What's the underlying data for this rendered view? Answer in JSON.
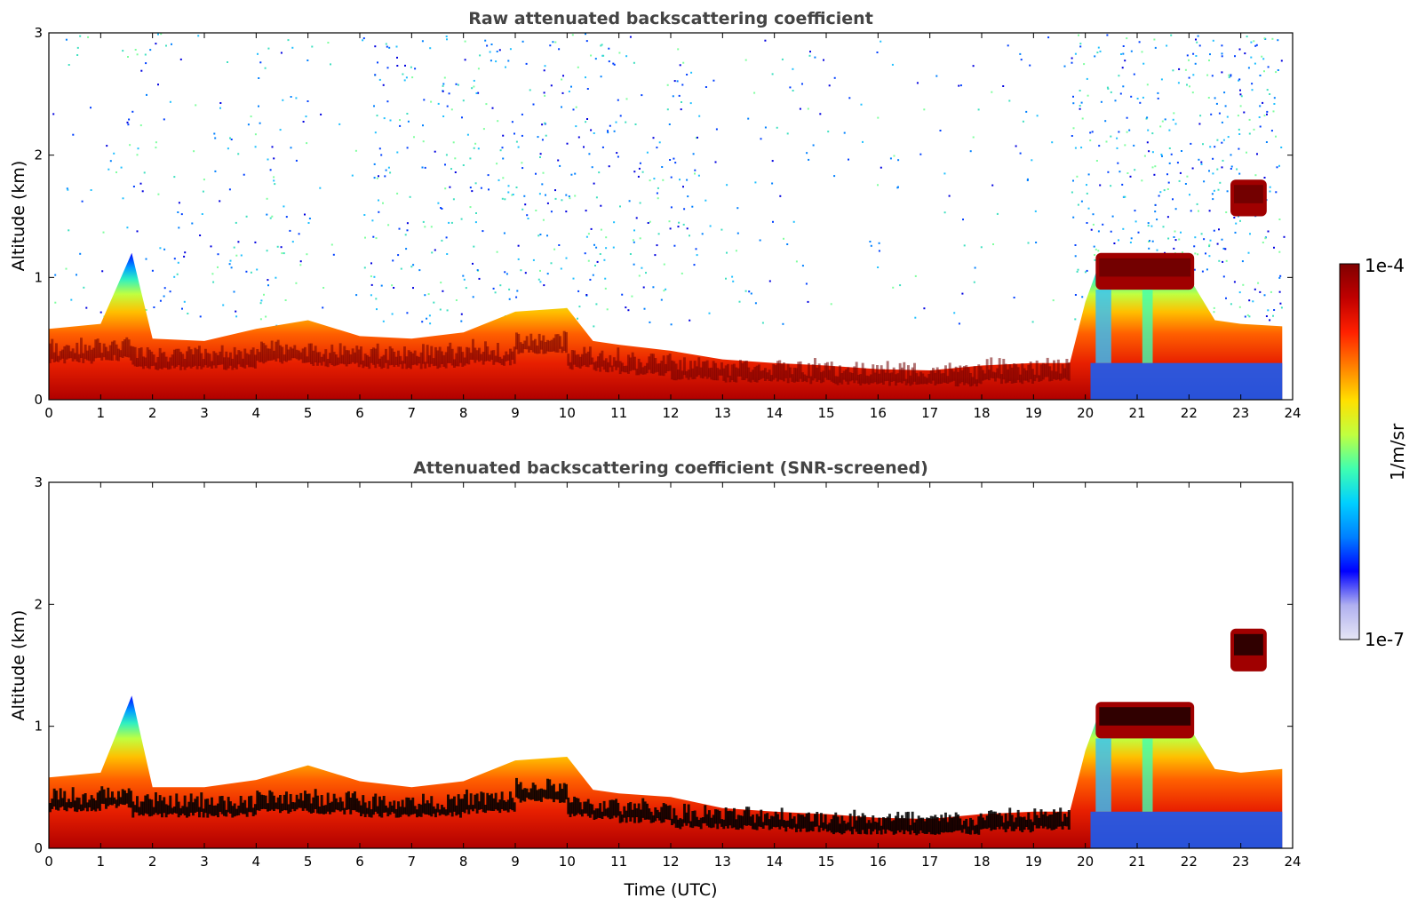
{
  "chart_data": [
    {
      "type": "heatmap",
      "title": "Raw attenuated backscattering coefficient",
      "xlabel": "",
      "ylabel": "Altitude (km)",
      "xlim": [
        0,
        24
      ],
      "ylim": [
        0,
        3
      ],
      "xticks": [
        "0",
        "1",
        "2",
        "3",
        "4",
        "5",
        "6",
        "7",
        "8",
        "9",
        "10",
        "11",
        "12",
        "13",
        "14",
        "15",
        "16",
        "17",
        "18",
        "19",
        "20",
        "21",
        "22",
        "23",
        "24"
      ],
      "yticks": [
        "0",
        "1",
        "2",
        "3"
      ],
      "layer_top_km": [
        [
          0,
          0.58
        ],
        [
          1,
          0.62
        ],
        [
          1.6,
          1.2
        ],
        [
          2,
          0.5
        ],
        [
          3,
          0.48
        ],
        [
          4,
          0.58
        ],
        [
          5,
          0.65
        ],
        [
          6,
          0.52
        ],
        [
          7,
          0.5
        ],
        [
          8,
          0.55
        ],
        [
          9,
          0.72
        ],
        [
          10,
          0.75
        ],
        [
          10.5,
          0.48
        ],
        [
          11,
          0.45
        ],
        [
          12,
          0.4
        ],
        [
          13,
          0.33
        ],
        [
          14,
          0.3
        ],
        [
          15,
          0.28
        ],
        [
          16,
          0.25
        ],
        [
          17,
          0.24
        ],
        [
          18,
          0.28
        ],
        [
          19,
          0.3
        ],
        [
          19.7,
          0.3
        ],
        [
          20,
          0.8
        ],
        [
          20.3,
          1.15
        ],
        [
          21,
          1.1
        ],
        [
          22,
          1.0
        ],
        [
          22.5,
          0.65
        ],
        [
          23,
          0.62
        ],
        [
          23.8,
          0.6
        ]
      ],
      "cloud_features": [
        {
          "x_start": 20.2,
          "x_end": 22.1,
          "alt_bottom_km": 0.9,
          "alt_top_km": 1.2
        },
        {
          "x_start": 22.8,
          "x_end": 23.5,
          "alt_bottom_km": 1.5,
          "alt_top_km": 1.8
        }
      ],
      "noise_above_layer": true
    },
    {
      "type": "heatmap",
      "title": "Attenuated backscattering coefficient (SNR-screened)",
      "xlabel": "Time (UTC)",
      "ylabel": "Altitude (km)",
      "xlim": [
        0,
        24
      ],
      "ylim": [
        0,
        3
      ],
      "xticks": [
        "0",
        "1",
        "2",
        "3",
        "4",
        "5",
        "6",
        "7",
        "8",
        "9",
        "10",
        "11",
        "12",
        "13",
        "14",
        "15",
        "16",
        "17",
        "18",
        "19",
        "20",
        "21",
        "22",
        "23",
        "24"
      ],
      "yticks": [
        "0",
        "1",
        "2",
        "3"
      ],
      "layer_top_km": [
        [
          0,
          0.58
        ],
        [
          1,
          0.62
        ],
        [
          1.6,
          1.25
        ],
        [
          2,
          0.5
        ],
        [
          3,
          0.5
        ],
        [
          4,
          0.56
        ],
        [
          5,
          0.68
        ],
        [
          6,
          0.55
        ],
        [
          7,
          0.5
        ],
        [
          8,
          0.55
        ],
        [
          9,
          0.72
        ],
        [
          10,
          0.75
        ],
        [
          10.5,
          0.48
        ],
        [
          11,
          0.45
        ],
        [
          12,
          0.42
        ],
        [
          13,
          0.33
        ],
        [
          14,
          0.3
        ],
        [
          15,
          0.28
        ],
        [
          16,
          0.25
        ],
        [
          17,
          0.24
        ],
        [
          18,
          0.28
        ],
        [
          19,
          0.3
        ],
        [
          19.7,
          0.3
        ],
        [
          20,
          0.8
        ],
        [
          20.3,
          1.15
        ],
        [
          21,
          1.1
        ],
        [
          22,
          1.0
        ],
        [
          22.5,
          0.65
        ],
        [
          23,
          0.62
        ],
        [
          23.8,
          0.65
        ]
      ],
      "cloud_features": [
        {
          "x_start": 20.2,
          "x_end": 22.1,
          "alt_bottom_km": 0.9,
          "alt_top_km": 1.2
        },
        {
          "x_start": 22.8,
          "x_end": 23.5,
          "alt_bottom_km": 1.45,
          "alt_top_km": 1.8
        }
      ],
      "noise_above_layer": false
    }
  ],
  "colorbar": {
    "max_label": "1e-4",
    "min_label": "1e-7",
    "units_label": "1/m/sr",
    "colors": [
      "#e6e6f5",
      "#b0b0f0",
      "#0000ff",
      "#0080ff",
      "#00d0ff",
      "#40ffb0",
      "#c0ff40",
      "#ffe000",
      "#ff8000",
      "#ff2000",
      "#c00000",
      "#800000"
    ]
  }
}
